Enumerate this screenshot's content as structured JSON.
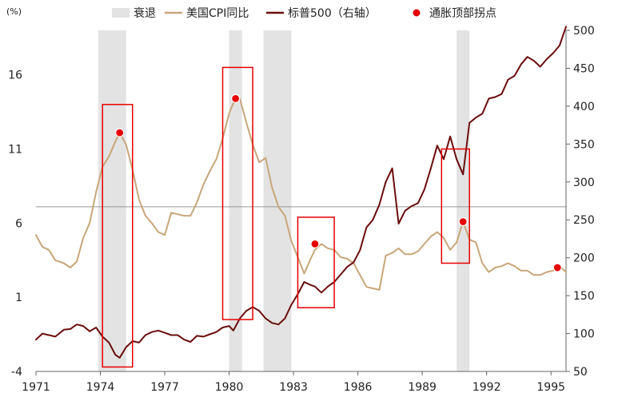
{
  "chart_data": {
    "type": "line",
    "title": "",
    "left_axis": {
      "unit_label": "(%)",
      "range": [
        -4,
        19
      ],
      "ticks": [
        -4,
        1,
        6,
        11,
        16
      ],
      "tick_labels": [
        "-4",
        "1",
        "6",
        "11",
        "16"
      ]
    },
    "right_axis": {
      "range": [
        50,
        500
      ],
      "ticks": [
        50,
        100,
        150,
        200,
        250,
        300,
        350,
        400,
        450,
        500
      ],
      "tick_labels": [
        "50",
        "100",
        "150",
        "200",
        "250",
        "300",
        "350",
        "400",
        "450",
        "500"
      ]
    },
    "x_axis": {
      "range": [
        1971,
        1995.7
      ],
      "ticks": [
        1971,
        1974,
        1977,
        1980,
        1983,
        1986,
        1989,
        1992,
        1995
      ],
      "tick_labels": [
        "1971",
        "1974",
        "1977",
        "1980",
        "1983",
        "1986",
        "1989",
        "1992",
        "1995"
      ]
    },
    "reference_line_y": 7.1,
    "legend": {
      "placement": "top",
      "items": [
        {
          "key": "recession",
          "label": "衰退",
          "color": "#e3e3e3"
        },
        {
          "key": "cpi",
          "label": "美国CPI同比",
          "color": "#c8a67a"
        },
        {
          "key": "spx",
          "label": "标普500（右轴）",
          "color": "#6b0d0d"
        },
        {
          "key": "peak",
          "label": "通胀顶部拐点",
          "color": "#e60000"
        }
      ]
    },
    "recessions": [
      {
        "start": 1973.9,
        "end": 1975.2
      },
      {
        "start": 1980.0,
        "end": 1980.6
      },
      {
        "start": 1981.6,
        "end": 1982.9
      },
      {
        "start": 1990.6,
        "end": 1991.2
      }
    ],
    "highlight_boxes": [
      {
        "x0": 1974.1,
        "x1": 1975.5,
        "y0": -3.7,
        "y1": 14.0
      },
      {
        "x0": 1979.7,
        "x1": 1981.1,
        "y0": -0.5,
        "y1": 16.5
      },
      {
        "x0": 1983.2,
        "x1": 1984.9,
        "y0": 0.3,
        "y1": 6.4
      },
      {
        "x0": 1989.9,
        "x1": 1991.2,
        "y0": 3.3,
        "y1": 11.0
      }
    ],
    "series": [
      {
        "name": "美国CPI同比",
        "axis": "left",
        "color": "#c8a67a",
        "x": [
          1971.0,
          1971.3,
          1971.6,
          1971.9,
          1972.3,
          1972.6,
          1972.9,
          1973.2,
          1973.5,
          1973.8,
          1974.1,
          1974.4,
          1974.7,
          1974.9,
          1975.2,
          1975.5,
          1975.8,
          1976.1,
          1976.4,
          1976.7,
          1977.0,
          1977.3,
          1977.6,
          1977.9,
          1978.2,
          1978.5,
          1978.8,
          1979.1,
          1979.4,
          1979.7,
          1980.0,
          1980.2,
          1980.5,
          1980.8,
          1981.1,
          1981.4,
          1981.7,
          1982.0,
          1982.3,
          1982.6,
          1982.9,
          1983.2,
          1983.5,
          1983.8,
          1984.0,
          1984.3,
          1984.6,
          1984.9,
          1985.2,
          1985.5,
          1985.8,
          1986.1,
          1986.4,
          1986.7,
          1987.0,
          1987.3,
          1987.6,
          1987.9,
          1988.2,
          1988.5,
          1988.8,
          1989.1,
          1989.4,
          1989.7,
          1990.0,
          1990.3,
          1990.6,
          1990.9,
          1991.2,
          1991.5,
          1991.8,
          1992.1,
          1992.4,
          1992.7,
          1993.0,
          1993.3,
          1993.6,
          1993.9,
          1994.2,
          1994.5,
          1994.8,
          1995.1,
          1995.4,
          1995.7
        ],
        "values": [
          5.2,
          4.4,
          4.2,
          3.5,
          3.3,
          3.0,
          3.4,
          5.0,
          6.0,
          8.1,
          9.8,
          10.5,
          11.5,
          12.1,
          11.3,
          9.6,
          7.6,
          6.5,
          6.0,
          5.4,
          5.2,
          6.7,
          6.6,
          6.5,
          6.5,
          7.4,
          8.6,
          9.5,
          10.3,
          11.7,
          13.4,
          14.1,
          14.4,
          12.8,
          11.3,
          10.1,
          10.4,
          8.4,
          7.1,
          6.5,
          4.8,
          3.7,
          2.6,
          3.6,
          4.2,
          4.6,
          4.3,
          4.2,
          3.7,
          3.6,
          3.3,
          2.5,
          1.7,
          1.6,
          1.5,
          3.8,
          4.0,
          4.3,
          3.9,
          3.9,
          4.1,
          4.6,
          5.1,
          5.4,
          5.0,
          4.2,
          4.7,
          6.1,
          4.9,
          4.7,
          3.3,
          2.7,
          3.0,
          3.1,
          3.3,
          3.1,
          2.8,
          2.8,
          2.5,
          2.5,
          2.7,
          2.8,
          3.1,
          2.7
        ]
      },
      {
        "name": "标普500（右轴）",
        "axis": "right",
        "color": "#6b0d0d",
        "x": [
          1971.0,
          1971.3,
          1971.6,
          1971.9,
          1972.3,
          1972.6,
          1972.9,
          1973.2,
          1973.5,
          1973.8,
          1974.1,
          1974.4,
          1974.7,
          1974.9,
          1975.2,
          1975.5,
          1975.8,
          1976.1,
          1976.4,
          1976.7,
          1977.0,
          1977.3,
          1977.6,
          1977.9,
          1978.2,
          1978.5,
          1978.8,
          1979.1,
          1979.4,
          1979.7,
          1980.0,
          1980.2,
          1980.5,
          1980.8,
          1981.1,
          1981.4,
          1981.7,
          1982.0,
          1982.3,
          1982.6,
          1982.9,
          1983.2,
          1983.5,
          1983.8,
          1984.0,
          1984.3,
          1984.6,
          1984.9,
          1985.2,
          1985.5,
          1985.8,
          1986.1,
          1986.4,
          1986.7,
          1987.0,
          1987.3,
          1987.6,
          1987.9,
          1988.2,
          1988.5,
          1988.8,
          1989.1,
          1989.4,
          1989.7,
          1990.0,
          1990.3,
          1990.6,
          1990.9,
          1991.2,
          1991.5,
          1991.8,
          1992.1,
          1992.4,
          1992.7,
          1993.0,
          1993.3,
          1993.6,
          1993.9,
          1994.2,
          1994.5,
          1994.8,
          1995.1,
          1995.4,
          1995.7
        ],
        "values": [
          92,
          100,
          98,
          96,
          105,
          106,
          112,
          110,
          103,
          108,
          96,
          88,
          72,
          68,
          82,
          90,
          88,
          98,
          102,
          104,
          101,
          98,
          98,
          92,
          89,
          97,
          96,
          99,
          102,
          108,
          110,
          104,
          120,
          130,
          135,
          130,
          120,
          114,
          112,
          120,
          138,
          152,
          168,
          164,
          162,
          154,
          162,
          168,
          178,
          188,
          194,
          210,
          240,
          250,
          270,
          300,
          318,
          245,
          262,
          268,
          272,
          290,
          318,
          348,
          330,
          360,
          330,
          310,
          378,
          385,
          390,
          410,
          412,
          416,
          435,
          440,
          455,
          465,
          460,
          452,
          462,
          470,
          480,
          505
        ]
      }
    ],
    "peak_points": [
      {
        "x": 1974.9,
        "y": 12.1
      },
      {
        "x": 1980.3,
        "y": 14.4
      },
      {
        "x": 1984.0,
        "y": 4.6
      },
      {
        "x": 1990.9,
        "y": 6.1
      },
      {
        "x": 1995.3,
        "y": 3.0
      }
    ]
  }
}
